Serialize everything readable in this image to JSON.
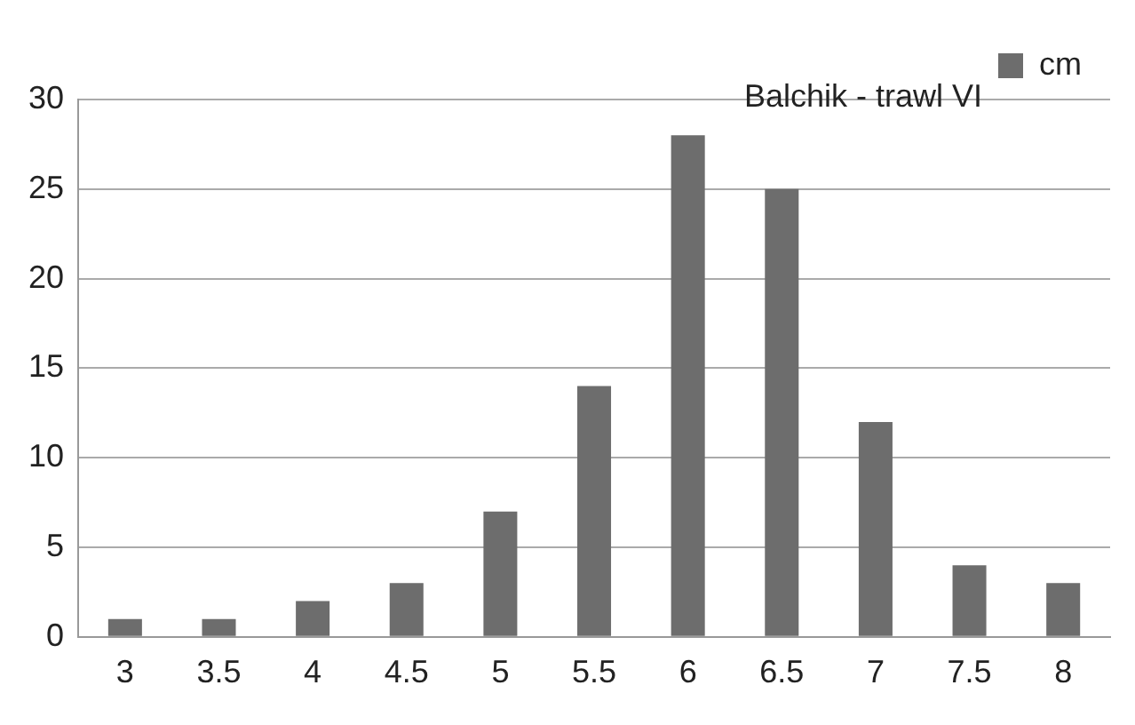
{
  "chart_data": {
    "type": "bar",
    "title": "Balchik - trawl VI",
    "categories": [
      "3",
      "3.5",
      "4",
      "4.5",
      "5",
      "5.5",
      "6",
      "6.5",
      "7",
      "7.5",
      "8"
    ],
    "series": [
      {
        "name": "cm",
        "color": "#6d6d6d",
        "values": [
          1,
          1,
          2,
          3,
          7,
          14,
          28,
          25,
          12,
          4,
          3
        ]
      }
    ],
    "ylim": [
      0,
      30
    ],
    "yticks": [
      0,
      5,
      10,
      15,
      20,
      25,
      30
    ],
    "grid": "y",
    "legend": "top right"
  }
}
